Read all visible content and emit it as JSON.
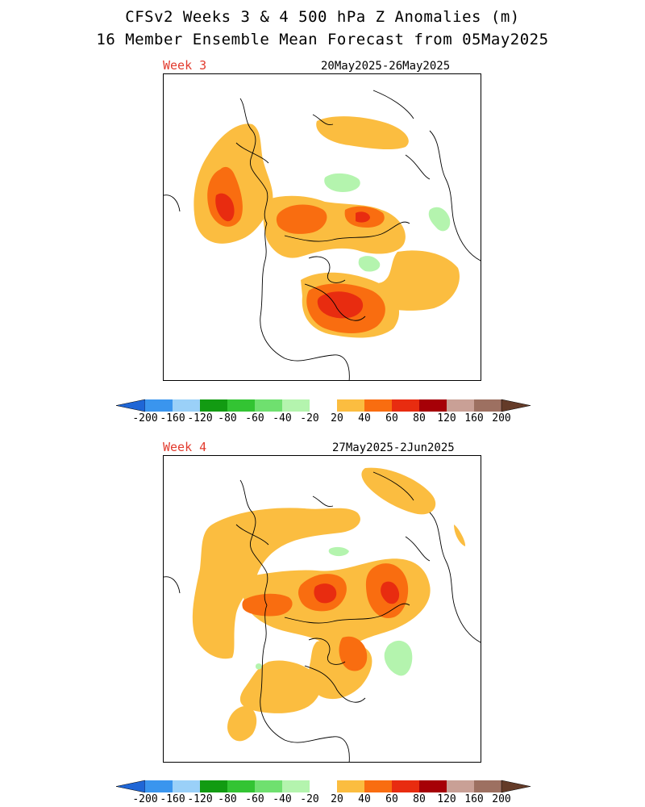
{
  "header": {
    "title_line1": "CFSv2 Weeks 3 & 4 500 hPa Z Anomalies (m)",
    "title_line2": "16 Member Ensemble Mean Forecast from 05May2025"
  },
  "panels": [
    {
      "week_label": "Week 3",
      "date_range": "20May2025-26May2025"
    },
    {
      "week_label": "Week 4",
      "date_range": "27May2025-2Jun2025"
    }
  ],
  "colorbar": {
    "ticks": [
      "-200",
      "-160",
      "-120",
      "-80",
      "-60",
      "-40",
      "-20",
      "20",
      "40",
      "60",
      "80",
      "120",
      "160",
      "200"
    ],
    "colors": [
      "#1f66d6",
      "#3a95ee",
      "#9ad0f8",
      "#129b12",
      "#33c433",
      "#6fe06f",
      "#b4f4ae",
      "#ffffff",
      "#fbbd40",
      "#f96d10",
      "#e82c10",
      "#a60007",
      "#c9a096",
      "#9d7061",
      "#643b28"
    ]
  },
  "colors": {
    "positive_20": "#fbbd40",
    "positive_40": "#f96d10",
    "positive_60": "#e82c10",
    "negative_20": "#b4f4ae",
    "coastline": "#000000",
    "week_label": "#e23b2e"
  }
}
